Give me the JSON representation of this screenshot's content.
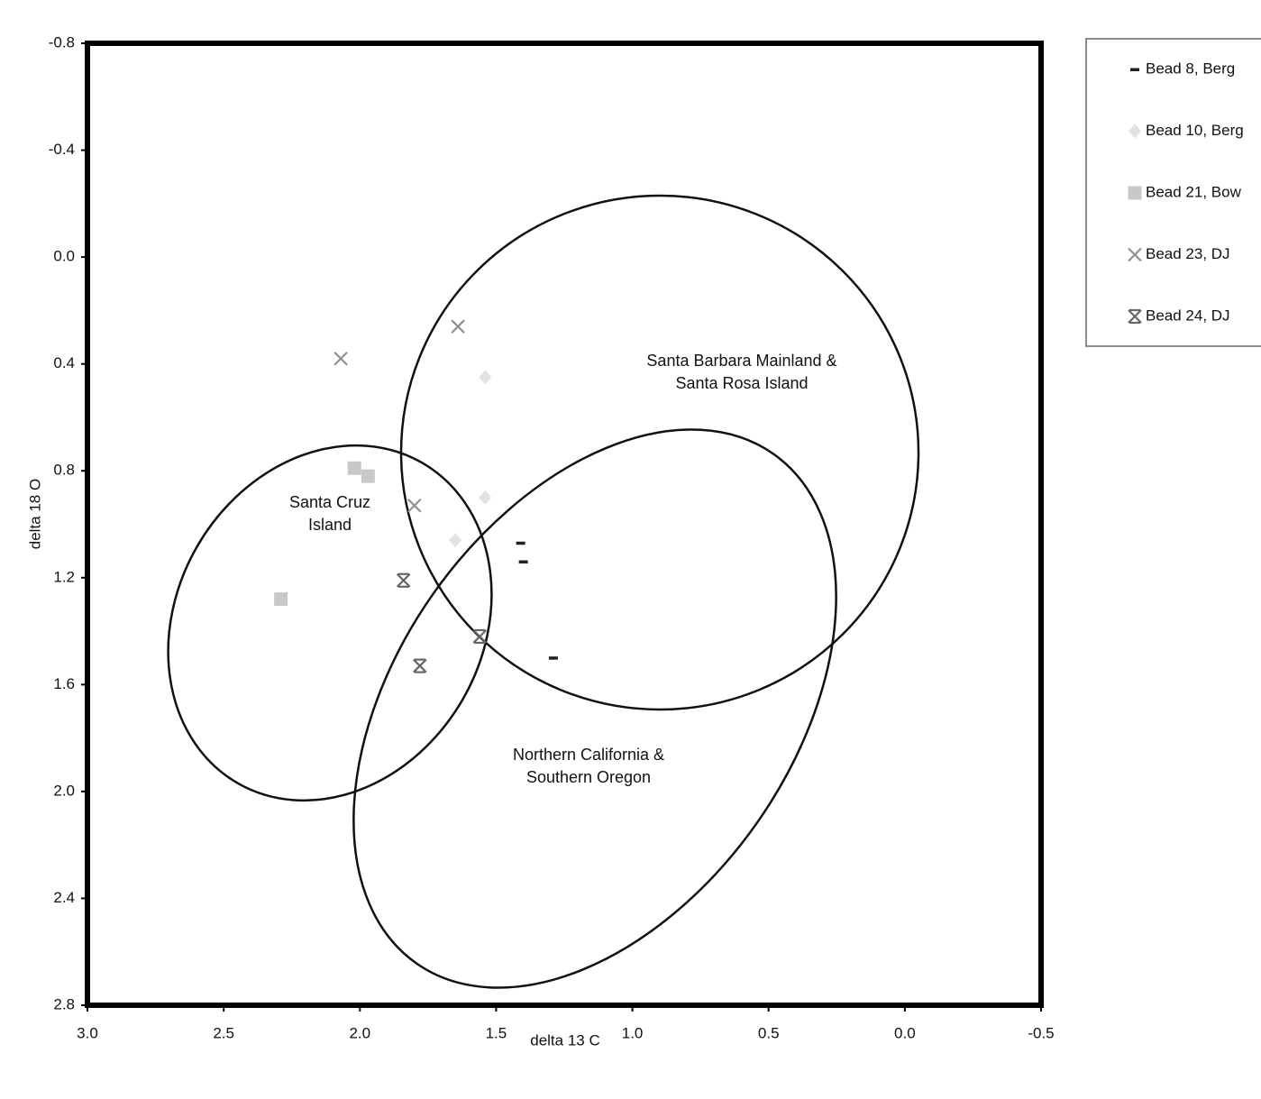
{
  "chart_data": {
    "type": "scatter",
    "x_label": "delta 13 C",
    "y_label": "delta 18 O",
    "xlim": [
      3,
      -0.5
    ],
    "ylim": [
      -0.8,
      2.8
    ],
    "xticks": [
      {
        "value": 3,
        "label": "3.0"
      },
      2.5,
      {
        "value": 2,
        "label": "2.0"
      },
      1.5,
      {
        "value": 1,
        "label": "1.0"
      },
      0.5,
      {
        "value": 0,
        "label": "0.0"
      },
      -0.5
    ],
    "yticks": [
      -0.8,
      -0.4,
      {
        "value": 0,
        "label": "0.0"
      },
      0.4,
      0.8,
      1.2,
      1.6,
      {
        "value": 2,
        "label": "2.0"
      },
      2.4,
      2.8
    ],
    "legend": "outside-right",
    "series": [
      {
        "name": "Bead 8, Berg",
        "color": "#222222",
        "marker": "dash",
        "x": [
          1.41,
          1.4,
          1.29
        ],
        "y": [
          1.07,
          1.14,
          1.5
        ]
      },
      {
        "name": "Bead 10, Berg",
        "color": "#e2e2e2",
        "marker": "diamond",
        "x": [
          1.54,
          1.54,
          1.65
        ],
        "y": [
          0.45,
          0.9,
          1.06
        ]
      },
      {
        "name": "Bead 21, Bow",
        "color": "#c8c8c8",
        "marker": "square",
        "x": [
          2.02,
          1.97,
          2.29
        ],
        "y": [
          0.79,
          0.82,
          1.28
        ]
      },
      {
        "name": "Bead 23, DJ",
        "color": "#909090",
        "marker": "x",
        "x": [
          2.07,
          1.64,
          1.8
        ],
        "y": [
          0.38,
          0.26,
          0.93
        ]
      },
      {
        "name": "Bead 24, DJ",
        "color": "#666666",
        "marker": "star",
        "x": [
          1.84,
          1.56,
          1.78
        ],
        "y": [
          1.21,
          1.42,
          1.53
        ]
      }
    ],
    "annotations": [
      "Santa Barbara Mainland &",
      "Santa Rosa Island",
      "Santa Cruz",
      "Island",
      "Northern California &",
      "Southern Oregon"
    ]
  }
}
